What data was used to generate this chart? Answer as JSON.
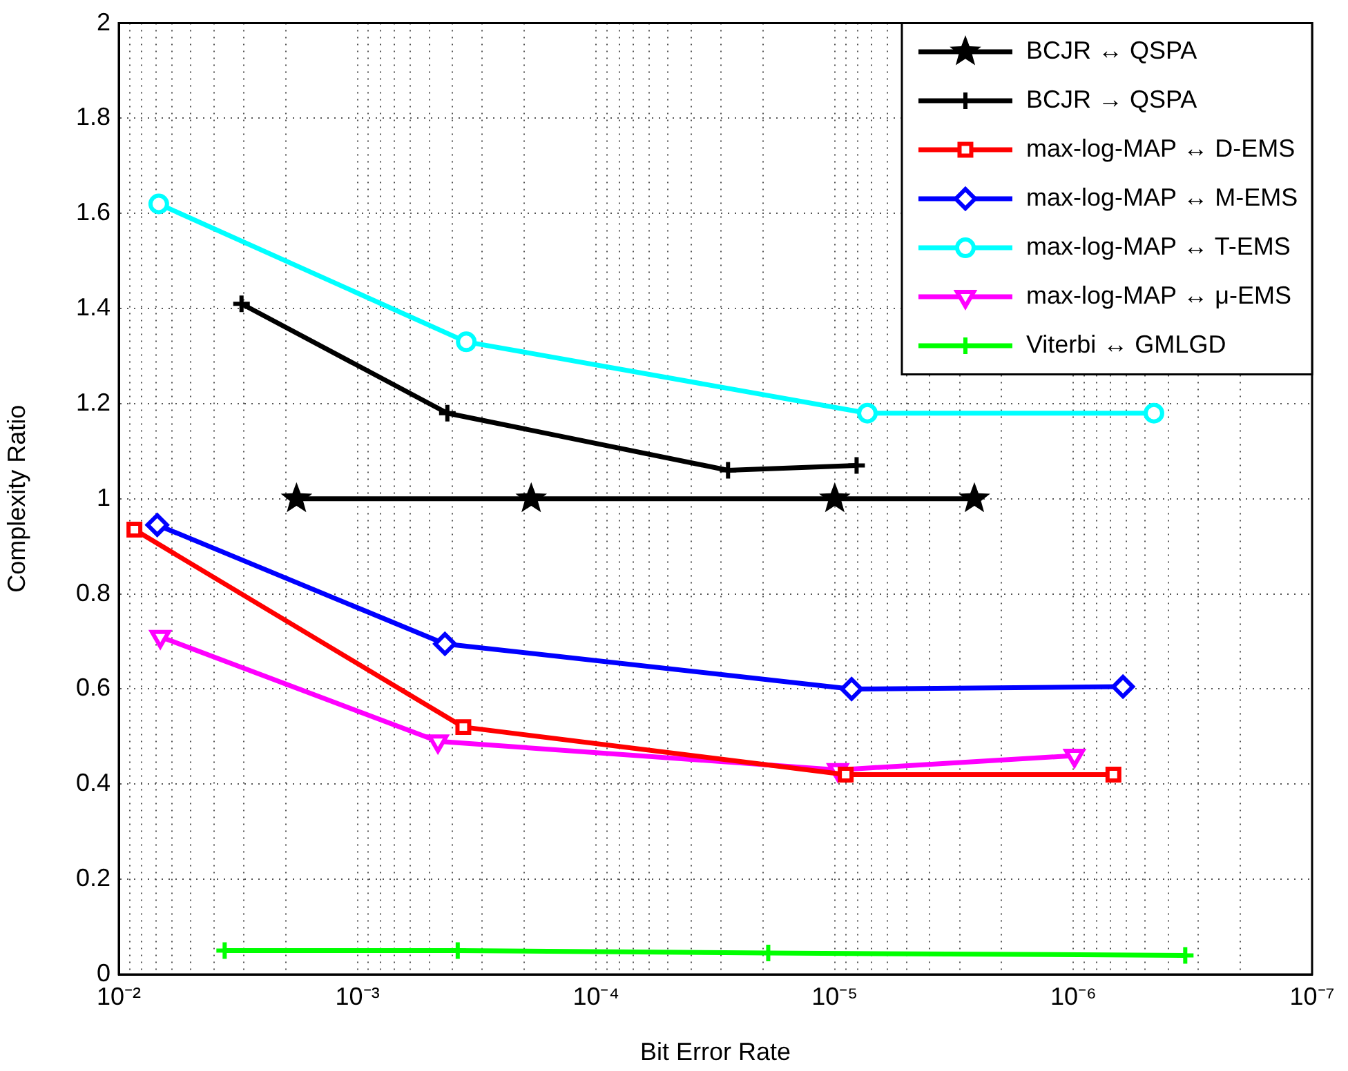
{
  "chart_data": {
    "type": "line",
    "xlabel": "Bit Error Rate",
    "ylabel": "Complexity Ratio",
    "log": "x",
    "xlim": [
      0.01,
      1e-07
    ],
    "xticks": [
      {
        "value": 0.01,
        "label": "10⁻²"
      },
      {
        "value": 0.001,
        "label": "10⁻³"
      },
      {
        "value": 0.0001,
        "label": "10⁻⁴"
      },
      {
        "value": 1e-05,
        "label": "10⁻⁵"
      },
      {
        "value": 1e-06,
        "label": "10⁻⁶"
      },
      {
        "value": 1e-07,
        "label": "10⁻⁷"
      }
    ],
    "ylim": [
      0,
      2
    ],
    "yticks": [
      0,
      0.2,
      0.4,
      0.6,
      0.8,
      1,
      1.2,
      1.4,
      1.6,
      1.8,
      2
    ],
    "grid": true,
    "legend": "top right",
    "line_style": "solid",
    "series": [
      {
        "name": "BCJR ↔ QSPA",
        "color": "#000000",
        "marker": "star",
        "x": [
          0.0018,
          0.000187,
          1e-05,
          2.6e-06
        ],
        "values": [
          1,
          1,
          1,
          1
        ]
      },
      {
        "name": "BCJR → QSPA",
        "color": "#000000",
        "marker": "cross",
        "x": [
          0.00306,
          0.00042,
          2.8e-05,
          8.1e-06
        ],
        "values": [
          1.41,
          1.18,
          1.06,
          1.07
        ]
      },
      {
        "name": "max-log-MAP ↔ D-EMS",
        "color": "#ff0000",
        "marker": "square",
        "x": [
          0.0086,
          0.00036,
          9e-06,
          6.8e-07
        ],
        "values": [
          0.935,
          0.52,
          0.42,
          0.42
        ]
      },
      {
        "name": "max-log-MAP ↔ M-EMS",
        "color": "#0000ff",
        "marker": "diamond",
        "x": [
          0.0069,
          0.00043,
          8.5e-06,
          6.2e-07
        ],
        "values": [
          0.945,
          0.695,
          0.6,
          0.605
        ]
      },
      {
        "name": "max-log-MAP ↔ T-EMS",
        "color": "#00ffff",
        "marker": "circle",
        "x": [
          0.0068,
          0.00035,
          7.3e-06,
          4.6e-07
        ],
        "values": [
          1.62,
          1.33,
          1.18,
          1.18
        ]
      },
      {
        "name": "max-log-MAP ↔ μ-EMS",
        "color": "#ff00ff",
        "marker": "triangle",
        "x": [
          0.0067,
          0.00046,
          9.7e-06,
          9.9e-07
        ],
        "values": [
          0.71,
          0.49,
          0.43,
          0.46
        ]
      },
      {
        "name": "Viterbi ↔ GMLGD",
        "color": "#00ff00",
        "marker": "cross",
        "x": [
          0.0036,
          0.00038,
          1.9e-05,
          3.4e-07
        ],
        "values": [
          0.05,
          0.05,
          0.045,
          0.04
        ]
      }
    ]
  }
}
